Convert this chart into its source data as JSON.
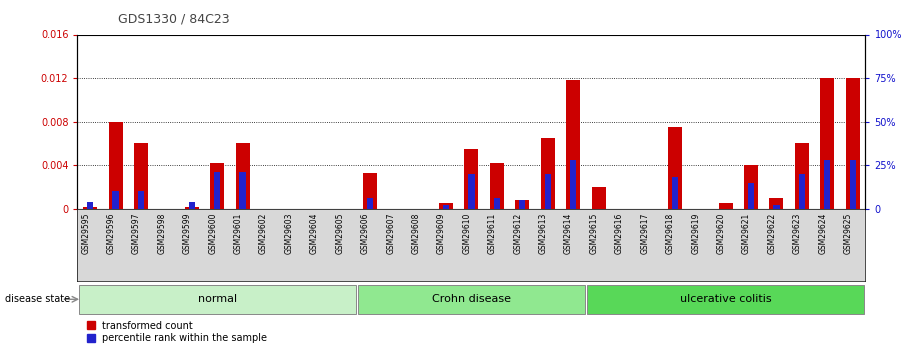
{
  "title": "GDS1330 / 84C23",
  "samples": [
    "GSM29595",
    "GSM29596",
    "GSM29597",
    "GSM29598",
    "GSM29599",
    "GSM29600",
    "GSM29601",
    "GSM29602",
    "GSM29603",
    "GSM29604",
    "GSM29605",
    "GSM29606",
    "GSM29607",
    "GSM29608",
    "GSM29609",
    "GSM29610",
    "GSM29611",
    "GSM29612",
    "GSM29613",
    "GSM29614",
    "GSM29615",
    "GSM29616",
    "GSM29617",
    "GSM29618",
    "GSM29619",
    "GSM29620",
    "GSM29621",
    "GSM29622",
    "GSM29623",
    "GSM29624",
    "GSM29625"
  ],
  "transformed_count": [
    0.0002,
    0.008,
    0.006,
    0.0,
    0.0002,
    0.0042,
    0.006,
    0.0,
    0.0,
    0.0,
    0.0,
    0.0033,
    0.0,
    0.0,
    0.0005,
    0.0055,
    0.0042,
    0.0008,
    0.0065,
    0.0118,
    0.002,
    0.0,
    0.0,
    0.0075,
    0.0,
    0.0005,
    0.004,
    0.001,
    0.006,
    0.012,
    0.012
  ],
  "percentile_rank_pct": [
    4,
    10,
    10,
    0,
    4,
    21,
    21,
    0,
    0,
    0,
    0,
    6,
    0,
    0,
    2,
    20,
    6,
    5,
    20,
    28,
    0,
    0,
    0,
    18,
    0,
    0,
    15,
    2,
    20,
    28,
    28
  ],
  "groups": [
    {
      "label": "normal",
      "start": 0,
      "end": 10,
      "color": "#c8f0c8"
    },
    {
      "label": "Crohn disease",
      "start": 11,
      "end": 19,
      "color": "#90e890"
    },
    {
      "label": "ulcerative colitis",
      "start": 20,
      "end": 30,
      "color": "#58d858"
    }
  ],
  "ylim_left": [
    0,
    0.016
  ],
  "ylim_right": [
    0,
    100
  ],
  "yticks_left": [
    0,
    0.004,
    0.008,
    0.012,
    0.016
  ],
  "yticks_right": [
    0,
    25,
    50,
    75,
    100
  ],
  "bar_color_red": "#cc0000",
  "bar_color_blue": "#2222cc",
  "title_color": "#444444",
  "left_axis_color": "#cc0000",
  "right_axis_color": "#1111cc",
  "bar_width": 0.55,
  "blue_bar_width": 0.25
}
